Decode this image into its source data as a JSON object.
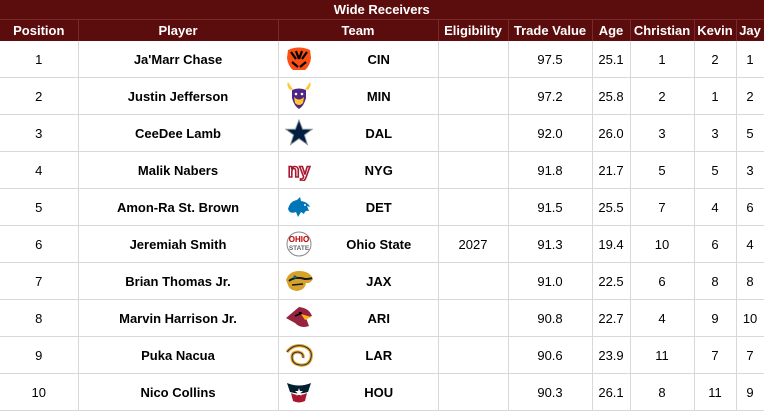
{
  "title": "Wide Receivers",
  "headers": {
    "position": "Position",
    "player": "Player",
    "team": "Team",
    "eligibility": "Eligibility",
    "trade_value": "Trade Value",
    "age": "Age",
    "christian": "Christian",
    "kevin": "Kevin",
    "jay": "Jay"
  },
  "rows": [
    {
      "position": "1",
      "player": "Ja'Marr Chase",
      "logo": "bengals-logo-icon",
      "team": "CIN",
      "eligibility": "",
      "trade_value": "97.5",
      "age": "25.1",
      "christian": "1",
      "kevin": "2",
      "jay": "1"
    },
    {
      "position": "2",
      "player": "Justin Jefferson",
      "logo": "vikings-logo-icon",
      "team": "MIN",
      "eligibility": "",
      "trade_value": "97.2",
      "age": "25.8",
      "christian": "2",
      "kevin": "1",
      "jay": "2"
    },
    {
      "position": "3",
      "player": "CeeDee Lamb",
      "logo": "cowboys-logo-icon",
      "team": "DAL",
      "eligibility": "",
      "trade_value": "92.0",
      "age": "26.0",
      "christian": "3",
      "kevin": "3",
      "jay": "5"
    },
    {
      "position": "4",
      "player": "Malik Nabers",
      "logo": "giants-logo-icon",
      "team": "NYG",
      "eligibility": "",
      "trade_value": "91.8",
      "age": "21.7",
      "christian": "5",
      "kevin": "5",
      "jay": "3"
    },
    {
      "position": "5",
      "player": "Amon-Ra St. Brown",
      "logo": "lions-logo-icon",
      "team": "DET",
      "eligibility": "",
      "trade_value": "91.5",
      "age": "25.5",
      "christian": "7",
      "kevin": "4",
      "jay": "6"
    },
    {
      "position": "6",
      "player": "Jeremiah Smith",
      "logo": "ohio-state-logo-icon",
      "team": "Ohio State",
      "eligibility": "2027",
      "trade_value": "91.3",
      "age": "19.4",
      "christian": "10",
      "kevin": "6",
      "jay": "4"
    },
    {
      "position": "7",
      "player": "Brian Thomas Jr.",
      "logo": "jaguars-logo-icon",
      "team": "JAX",
      "eligibility": "",
      "trade_value": "91.0",
      "age": "22.5",
      "christian": "6",
      "kevin": "8",
      "jay": "8"
    },
    {
      "position": "8",
      "player": "Marvin Harrison Jr.",
      "logo": "cardinals-logo-icon",
      "team": "ARI",
      "eligibility": "",
      "trade_value": "90.8",
      "age": "22.7",
      "christian": "4",
      "kevin": "9",
      "jay": "10"
    },
    {
      "position": "9",
      "player": "Puka Nacua",
      "logo": "rams-logo-icon",
      "team": "LAR",
      "eligibility": "",
      "trade_value": "90.6",
      "age": "23.9",
      "christian": "11",
      "kevin": "7",
      "jay": "7"
    },
    {
      "position": "10",
      "player": "Nico Collins",
      "logo": "texans-logo-icon",
      "team": "HOU",
      "eligibility": "",
      "trade_value": "90.3",
      "age": "26.1",
      "christian": "8",
      "kevin": "11",
      "jay": "9"
    }
  ]
}
